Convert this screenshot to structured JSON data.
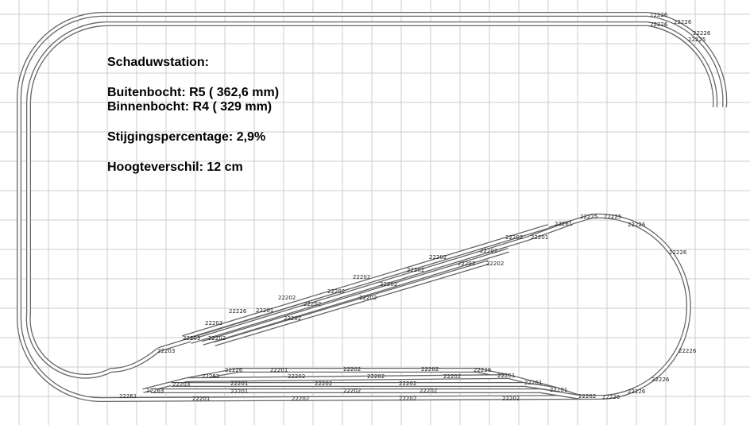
{
  "info": {
    "title": "Schaduwstation:",
    "lines": [
      "Buitenbocht: R5 ( 362,6 mm)",
      "Binnenbocht: R4 ( 329 mm)",
      "Stijgingspercentage: 2,9%",
      "Hoogteverschil: 12 cm"
    ]
  },
  "track_labels": [
    "22226",
    "22226",
    "22226",
    "22226",
    "22225",
    "22202",
    "22202",
    "22202",
    "22202",
    "22202",
    "22202",
    "22202",
    "22202",
    "22202",
    "22202",
    "22202",
    "22202",
    "22202",
    "22202",
    "22226",
    "22201",
    "22203",
    "22203",
    "22203",
    "22201",
    "22261",
    "22225",
    "22225",
    "22226",
    "22226",
    "22226",
    "22226",
    "22226",
    "22226",
    "22262",
    "22226",
    "22201",
    "22202",
    "22202",
    "22226",
    "22261",
    "22202",
    "22202",
    "22202",
    "22261",
    "22201",
    "22201",
    "22202",
    "22202",
    "22201",
    "22202",
    "22202",
    "22202",
    "22201",
    "22202",
    "22202",
    "22262",
    "22203",
    "22263",
    "22261"
  ]
}
